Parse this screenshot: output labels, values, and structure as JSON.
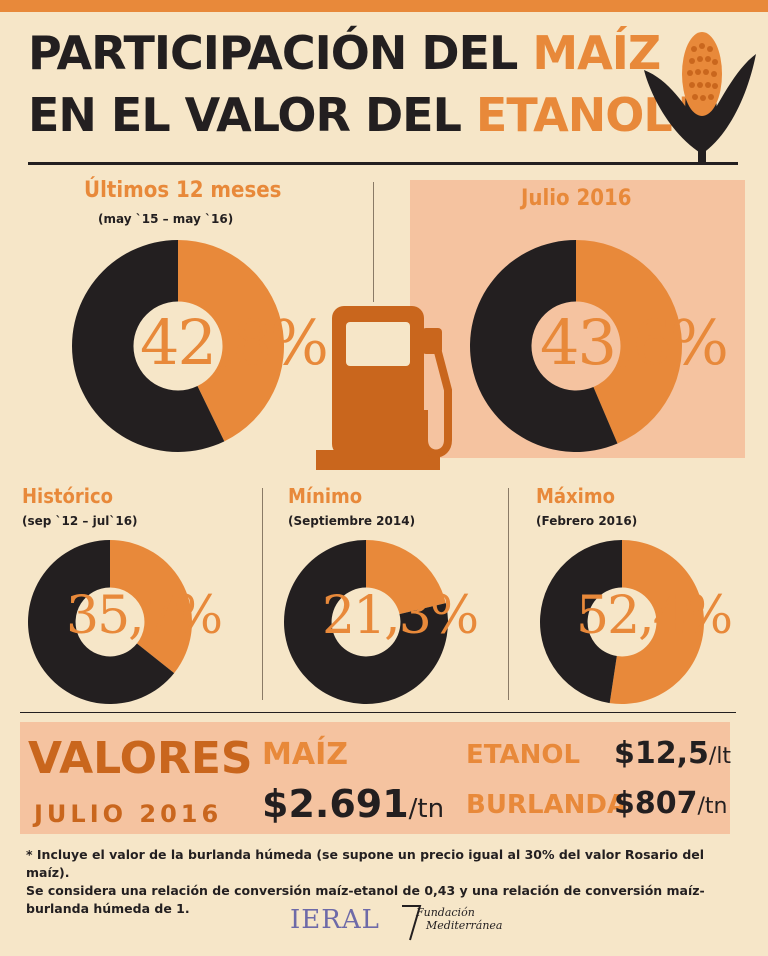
{
  "title": {
    "line1_dark": "PARTICIPACIÓN DEL",
    "line1_orange": "MAÍZ",
    "line2_dark": "EN EL VALOR DEL",
    "line2_orange": "ETANOL*"
  },
  "colors": {
    "dark": "#231f20",
    "orange": "#e8893a",
    "highlight": "#f5c3a0",
    "background": "#f6e6c8"
  },
  "icons": [
    "corn-icon",
    "fuel-pump-icon"
  ],
  "chart_data": [
    {
      "type": "pie",
      "title": "Últimos 12 meses",
      "subtitle": "(may `15 – may `16)",
      "value_label": "42,8%",
      "values": [
        42.8,
        57.2
      ]
    },
    {
      "type": "pie",
      "title": "Julio 2016",
      "subtitle": "",
      "value_label": "43,6%",
      "values": [
        43.6,
        56.4
      ]
    },
    {
      "type": "pie",
      "title": "Histórico",
      "subtitle": "(sep `12 – jul`16)",
      "value_label": "35,7%",
      "values": [
        35.7,
        64.3
      ]
    },
    {
      "type": "pie",
      "title": "Mínimo",
      "subtitle": "(Septiembre 2014)",
      "value_label": "21,3%",
      "values": [
        21.3,
        78.7
      ]
    },
    {
      "type": "pie",
      "title": "Máximo",
      "subtitle": "(Febrero 2016)",
      "value_label": "52,4%",
      "values": [
        52.4,
        47.6
      ]
    }
  ],
  "valores": {
    "heading": "VALORES",
    "period": "JULIO 2016",
    "maiz_label": "MAÍZ",
    "maiz_price": "$2.691",
    "maiz_unit": "/tn",
    "etanol_label": "ETANOL",
    "etanol_price": "$12,5",
    "etanol_unit": "/lt",
    "burlanda_label": "BURLANDA",
    "burlanda_price": "$807",
    "burlanda_unit": "/tn"
  },
  "footnote": {
    "line1": "* Incluye el valor de la burlanda húmeda (se supone un precio igual al 30% del valor Rosario del maíz).",
    "line2": "Se considera una relación de conversión maíz-etanol de 0,43 y una relación de conversión maíz-",
    "line3": "burlanda húmeda de 1."
  },
  "logos": {
    "ieral": "IERAL",
    "fundacion_line1": "Fundación",
    "fundacion_line2": "Mediterránea"
  }
}
